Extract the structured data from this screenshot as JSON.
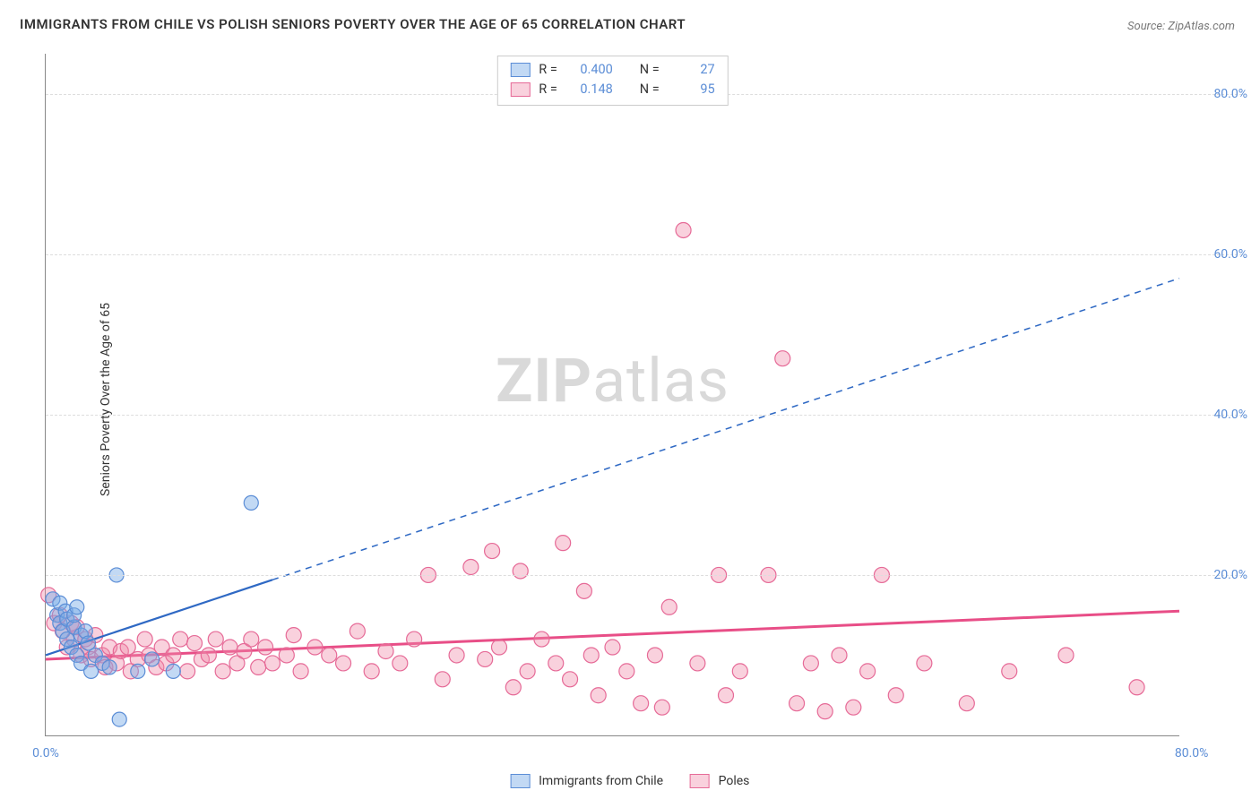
{
  "title": "IMMIGRANTS FROM CHILE VS POLISH SENIORS POVERTY OVER THE AGE OF 65 CORRELATION CHART",
  "source": "Source: ZipAtlas.com",
  "y_axis_label": "Seniors Poverty Over the Age of 65",
  "watermark_a": "ZIP",
  "watermark_b": "atlas",
  "chart": {
    "type": "scatter",
    "background_color": "#ffffff",
    "grid_color": "#dddddd",
    "axis_color": "#888888",
    "tick_color": "#5b8dd6",
    "xlim": [
      0,
      80
    ],
    "ylim": [
      0,
      85
    ],
    "xticks": [
      {
        "v": 0,
        "label": "0.0%"
      },
      {
        "v": 80,
        "label": "80.0%"
      }
    ],
    "yticks": [
      {
        "v": 20,
        "label": "20.0%"
      },
      {
        "v": 40,
        "label": "40.0%"
      },
      {
        "v": 60,
        "label": "60.0%"
      },
      {
        "v": 80,
        "label": "80.0%"
      }
    ],
    "series": [
      {
        "name": "Immigrants from Chile",
        "color_fill": "rgba(120,170,230,0.45)",
        "color_stroke": "#5b8dd6",
        "marker_r": 8,
        "trend": {
          "x1": 0,
          "y1": 10,
          "x2": 80,
          "y2": 57,
          "solid_until_x": 16,
          "stroke": "#2f69c4",
          "width": 2.2
        },
        "stats": {
          "R": "0.400",
          "N": "27"
        },
        "points": [
          [
            0.5,
            17
          ],
          [
            0.8,
            15
          ],
          [
            1.0,
            14
          ],
          [
            1.0,
            16.5
          ],
          [
            1.2,
            13
          ],
          [
            1.4,
            15.5
          ],
          [
            1.5,
            12
          ],
          [
            1.5,
            14.5
          ],
          [
            1.8,
            11
          ],
          [
            2.0,
            13.5
          ],
          [
            2.0,
            15
          ],
          [
            2.2,
            16
          ],
          [
            2.2,
            10
          ],
          [
            2.5,
            9
          ],
          [
            2.5,
            12.5
          ],
          [
            2.8,
            13
          ],
          [
            3.0,
            11.5
          ],
          [
            3.2,
            8
          ],
          [
            3.5,
            10
          ],
          [
            4.0,
            9
          ],
          [
            4.5,
            8.5
          ],
          [
            5.0,
            20
          ],
          [
            5.2,
            2
          ],
          [
            6.5,
            8
          ],
          [
            7.5,
            9.5
          ],
          [
            9.0,
            8
          ],
          [
            14.5,
            29
          ]
        ]
      },
      {
        "name": "Poles",
        "color_fill": "rgba(240,140,170,0.40)",
        "color_stroke": "#e66a97",
        "marker_r": 8.5,
        "trend": {
          "x1": 0,
          "y1": 9.5,
          "x2": 80,
          "y2": 15.5,
          "solid_until_x": 80,
          "stroke": "#e84e87",
          "width": 3
        },
        "stats": {
          "R": "0.148",
          "N": "95"
        },
        "points": [
          [
            0.2,
            17.5
          ],
          [
            0.6,
            14
          ],
          [
            1.0,
            15
          ],
          [
            1.2,
            13
          ],
          [
            1.5,
            11
          ],
          [
            1.8,
            14
          ],
          [
            2.0,
            12
          ],
          [
            2.2,
            13.5
          ],
          [
            2.5,
            10
          ],
          [
            2.8,
            12
          ],
          [
            3.0,
            11
          ],
          [
            3.2,
            9.5
          ],
          [
            3.5,
            12.5
          ],
          [
            4.0,
            10
          ],
          [
            4.2,
            8.5
          ],
          [
            4.5,
            11
          ],
          [
            5.0,
            9
          ],
          [
            5.3,
            10.5
          ],
          [
            5.8,
            11
          ],
          [
            6.0,
            8
          ],
          [
            6.5,
            9.5
          ],
          [
            7.0,
            12
          ],
          [
            7.3,
            10
          ],
          [
            7.8,
            8.5
          ],
          [
            8.2,
            11
          ],
          [
            8.5,
            9
          ],
          [
            9.0,
            10
          ],
          [
            9.5,
            12
          ],
          [
            10.0,
            8
          ],
          [
            10.5,
            11.5
          ],
          [
            11.0,
            9.5
          ],
          [
            11.5,
            10
          ],
          [
            12.0,
            12
          ],
          [
            12.5,
            8
          ],
          [
            13.0,
            11
          ],
          [
            13.5,
            9
          ],
          [
            14.0,
            10.5
          ],
          [
            14.5,
            12
          ],
          [
            15.0,
            8.5
          ],
          [
            15.5,
            11
          ],
          [
            16.0,
            9
          ],
          [
            17.0,
            10
          ],
          [
            17.5,
            12.5
          ],
          [
            18.0,
            8
          ],
          [
            19.0,
            11
          ],
          [
            20.0,
            10
          ],
          [
            21.0,
            9
          ],
          [
            22.0,
            13
          ],
          [
            23.0,
            8
          ],
          [
            24.0,
            10.5
          ],
          [
            25.0,
            9
          ],
          [
            26.0,
            12
          ],
          [
            27.0,
            20
          ],
          [
            28.0,
            7
          ],
          [
            29.0,
            10
          ],
          [
            30.0,
            21
          ],
          [
            31.0,
            9.5
          ],
          [
            31.5,
            23
          ],
          [
            32.0,
            11
          ],
          [
            33.0,
            6
          ],
          [
            33.5,
            20.5
          ],
          [
            34.0,
            8
          ],
          [
            35.0,
            12
          ],
          [
            36.0,
            9
          ],
          [
            36.5,
            24
          ],
          [
            37.0,
            7
          ],
          [
            38.0,
            18
          ],
          [
            38.5,
            10
          ],
          [
            39.0,
            5
          ],
          [
            40.0,
            11
          ],
          [
            41.0,
            8
          ],
          [
            42.0,
            4
          ],
          [
            43.0,
            10
          ],
          [
            43.5,
            3.5
          ],
          [
            44.0,
            16
          ],
          [
            45.0,
            63
          ],
          [
            46.0,
            9
          ],
          [
            47.5,
            20
          ],
          [
            48.0,
            5
          ],
          [
            49.0,
            8
          ],
          [
            51.0,
            20
          ],
          [
            52.0,
            47
          ],
          [
            53.0,
            4
          ],
          [
            54.0,
            9
          ],
          [
            55.0,
            3
          ],
          [
            56.0,
            10
          ],
          [
            57.0,
            3.5
          ],
          [
            58.0,
            8
          ],
          [
            59.0,
            20
          ],
          [
            60.0,
            5
          ],
          [
            62.0,
            9
          ],
          [
            65.0,
            4
          ],
          [
            68.0,
            8
          ],
          [
            72.0,
            10
          ],
          [
            77.0,
            6
          ]
        ]
      }
    ]
  },
  "legend_bottom": [
    {
      "label": "Immigrants from Chile",
      "fill": "rgba(120,170,230,0.45)",
      "stroke": "#5b8dd6"
    },
    {
      "label": "Poles",
      "fill": "rgba(240,140,170,0.40)",
      "stroke": "#e66a97"
    }
  ]
}
